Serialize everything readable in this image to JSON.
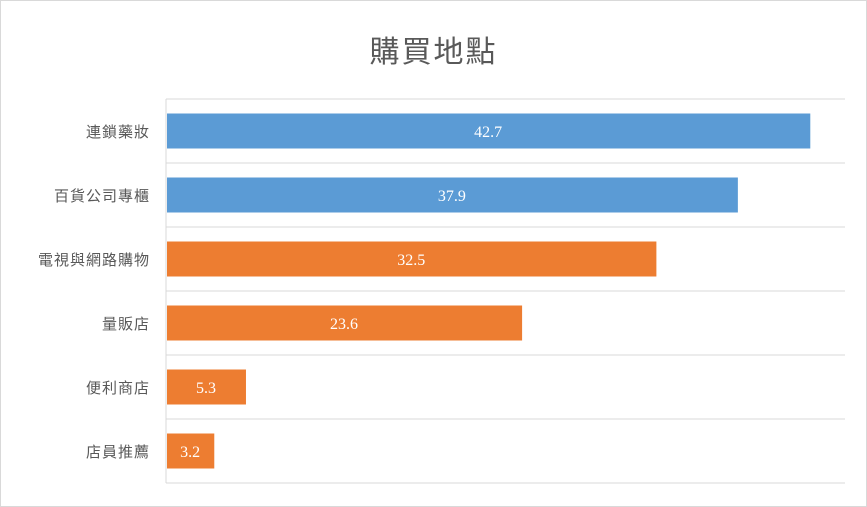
{
  "chart_data": {
    "type": "bar",
    "orientation": "horizontal",
    "title": "購買地點",
    "categories": [
      "連鎖藥妝",
      "百貨公司專櫃",
      "電視與網路購物",
      "量販店",
      "便利商店",
      "店員推薦"
    ],
    "values": [
      42.7,
      37.9,
      32.5,
      23.6,
      5.3,
      3.2
    ],
    "value_labels": [
      "42.7",
      "37.9",
      "32.5",
      "23.6",
      "5.3",
      "3.2"
    ],
    "bar_colors": [
      "#5b9bd5",
      "#5b9bd5",
      "#ed7d31",
      "#ed7d31",
      "#ed7d31",
      "#ed7d31"
    ],
    "xlim": [
      0,
      45
    ],
    "grid": true,
    "legend": "none"
  }
}
